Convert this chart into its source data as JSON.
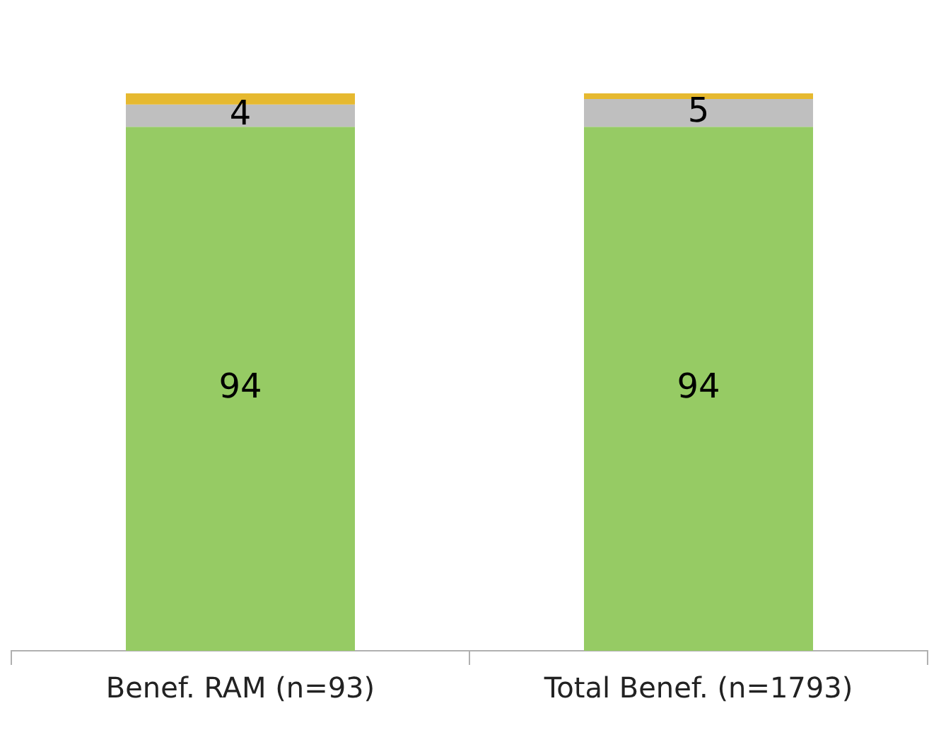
{
  "chart_data": {
    "type": "bar",
    "stacked": true,
    "categories": [
      "Benef. RAM (n=93)",
      "Total Benef. (n=1793)"
    ],
    "series": [
      {
        "color": "#96cb64",
        "values": [
          94,
          94
        ],
        "value_labels": [
          "94",
          "94"
        ]
      },
      {
        "color": "#bfbfbf",
        "values": [
          4,
          5
        ],
        "value_labels": [
          "4",
          "5"
        ]
      },
      {
        "color": "#e6b930",
        "values": [
          2,
          1
        ],
        "value_labels": [
          null,
          null
        ]
      }
    ],
    "ylim": [
      0,
      100
    ],
    "legend": false,
    "grid": false
  }
}
